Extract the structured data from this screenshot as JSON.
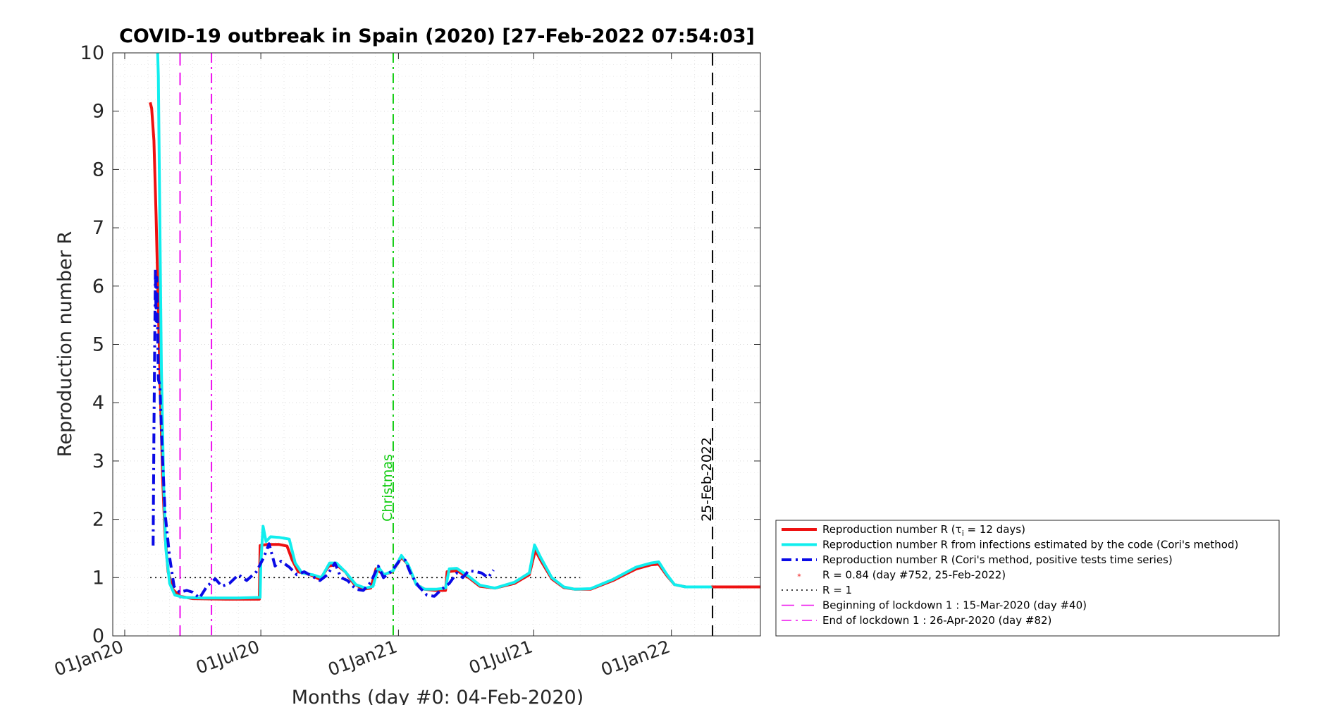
{
  "chart_data": {
    "type": "line",
    "title": "COVID-19 outbreak in Spain (2020) [27-Feb-2022 07:54:03]",
    "xlabel": "Months (day #0: 04-Feb-2020)",
    "ylabel": "Reproduction number R",
    "xlim": [
      "2019-12-16",
      "2022-04-30"
    ],
    "ylim": [
      0,
      10
    ],
    "yticks": [
      0,
      1,
      2,
      3,
      4,
      5,
      6,
      7,
      8,
      9,
      10
    ],
    "xticks": [
      {
        "date": "2020-01-01",
        "label": "01Jan20"
      },
      {
        "date": "2020-07-01",
        "label": "01Jul20"
      },
      {
        "date": "2021-01-01",
        "label": "01Jan21"
      },
      {
        "date": "2021-07-01",
        "label": "01Jul21"
      },
      {
        "date": "2022-01-01",
        "label": "01Jan22"
      }
    ],
    "grid": true,
    "legend_position": "right",
    "series": [
      {
        "name": "Reproduction number R (τi = 12 days)",
        "color": "#ee1111",
        "style": "solid",
        "points": [
          [
            "2020-02-04",
            9.15
          ],
          [
            "2020-02-06",
            9.05
          ],
          [
            "2020-02-09",
            8.5
          ],
          [
            "2020-02-12",
            7.2
          ],
          [
            "2020-02-15",
            5.6
          ],
          [
            "2020-02-18",
            4.0
          ],
          [
            "2020-02-21",
            2.6
          ],
          [
            "2020-02-24",
            1.7
          ],
          [
            "2020-02-28",
            1.1
          ],
          [
            "2020-03-05",
            0.8
          ],
          [
            "2020-03-15",
            0.68
          ],
          [
            "2020-04-01",
            0.64
          ],
          [
            "2020-05-15",
            0.63
          ],
          [
            "2020-06-29",
            0.63
          ],
          [
            "2020-06-30",
            1.55
          ],
          [
            "2020-07-10",
            1.57
          ],
          [
            "2020-07-25",
            1.57
          ],
          [
            "2020-08-05",
            1.54
          ],
          [
            "2020-08-12",
            1.3
          ],
          [
            "2020-08-20",
            1.1
          ],
          [
            "2020-09-05",
            1.05
          ],
          [
            "2020-09-18",
            0.97
          ],
          [
            "2020-09-30",
            1.2
          ],
          [
            "2020-10-10",
            1.22
          ],
          [
            "2020-10-22",
            1.1
          ],
          [
            "2020-11-02",
            0.9
          ],
          [
            "2020-11-15",
            0.8
          ],
          [
            "2020-11-25",
            0.82
          ],
          [
            "2020-12-02",
            1.15
          ],
          [
            "2020-12-12",
            1.05
          ],
          [
            "2020-12-24",
            1.1
          ],
          [
            "2021-01-05",
            1.35
          ],
          [
            "2021-01-12",
            1.25
          ],
          [
            "2021-01-25",
            0.88
          ],
          [
            "2021-02-05",
            0.8
          ],
          [
            "2021-02-20",
            0.78
          ],
          [
            "2021-03-05",
            0.78
          ],
          [
            "2021-03-07",
            1.1
          ],
          [
            "2021-03-20",
            1.12
          ],
          [
            "2021-04-05",
            1.0
          ],
          [
            "2021-04-20",
            0.85
          ],
          [
            "2021-05-10",
            0.82
          ],
          [
            "2021-06-05",
            0.9
          ],
          [
            "2021-06-25",
            1.05
          ],
          [
            "2021-07-03",
            1.47
          ],
          [
            "2021-07-10",
            1.3
          ],
          [
            "2021-07-25",
            0.98
          ],
          [
            "2021-08-10",
            0.83
          ],
          [
            "2021-08-25",
            0.8
          ],
          [
            "2021-09-15",
            0.8
          ],
          [
            "2021-10-15",
            0.95
          ],
          [
            "2021-11-15",
            1.15
          ],
          [
            "2021-12-05",
            1.22
          ],
          [
            "2021-12-15",
            1.23
          ],
          [
            "2021-12-25",
            1.05
          ],
          [
            "2022-01-05",
            0.88
          ],
          [
            "2022-01-20",
            0.84
          ],
          [
            "2022-02-25",
            0.84
          ],
          [
            "2022-04-30",
            0.84
          ]
        ]
      },
      {
        "name": "Reproduction number R from infections estimated by the code (Cori's method)",
        "color": "#11eeee",
        "style": "solid",
        "points": [
          [
            "2020-02-14",
            10.0
          ],
          [
            "2020-02-15",
            9.6
          ],
          [
            "2020-02-17",
            7.0
          ],
          [
            "2020-02-19",
            4.6
          ],
          [
            "2020-02-22",
            2.6
          ],
          [
            "2020-02-25",
            1.5
          ],
          [
            "2020-03-01",
            0.9
          ],
          [
            "2020-03-08",
            0.7
          ],
          [
            "2020-03-20",
            0.66
          ],
          [
            "2020-04-15",
            0.65
          ],
          [
            "2020-06-01",
            0.65
          ],
          [
            "2020-06-30",
            0.66
          ],
          [
            "2020-07-01",
            1.25
          ],
          [
            "2020-07-04",
            1.88
          ],
          [
            "2020-07-08",
            1.62
          ],
          [
            "2020-07-14",
            1.7
          ],
          [
            "2020-07-25",
            1.69
          ],
          [
            "2020-08-08",
            1.66
          ],
          [
            "2020-08-16",
            1.25
          ],
          [
            "2020-08-25",
            1.08
          ],
          [
            "2020-09-08",
            1.05
          ],
          [
            "2020-09-20",
            1.0
          ],
          [
            "2020-10-01",
            1.25
          ],
          [
            "2020-10-10",
            1.25
          ],
          [
            "2020-10-22",
            1.1
          ],
          [
            "2020-11-05",
            0.88
          ],
          [
            "2020-11-18",
            0.82
          ],
          [
            "2020-11-28",
            0.85
          ],
          [
            "2020-12-05",
            1.18
          ],
          [
            "2020-12-13",
            1.05
          ],
          [
            "2020-12-25",
            1.12
          ],
          [
            "2021-01-05",
            1.38
          ],
          [
            "2021-01-14",
            1.22
          ],
          [
            "2021-01-25",
            0.88
          ],
          [
            "2021-02-05",
            0.8
          ],
          [
            "2021-02-20",
            0.8
          ],
          [
            "2021-03-05",
            0.82
          ],
          [
            "2021-03-10",
            1.15
          ],
          [
            "2021-03-20",
            1.16
          ],
          [
            "2021-04-05",
            1.02
          ],
          [
            "2021-04-20",
            0.87
          ],
          [
            "2021-05-10",
            0.82
          ],
          [
            "2021-06-05",
            0.92
          ],
          [
            "2021-06-25",
            1.08
          ],
          [
            "2021-07-02",
            1.56
          ],
          [
            "2021-07-10",
            1.35
          ],
          [
            "2021-07-25",
            1.0
          ],
          [
            "2021-08-10",
            0.84
          ],
          [
            "2021-08-25",
            0.8
          ],
          [
            "2021-09-15",
            0.81
          ],
          [
            "2021-10-15",
            0.97
          ],
          [
            "2021-11-15",
            1.18
          ],
          [
            "2021-12-05",
            1.25
          ],
          [
            "2021-12-15",
            1.27
          ],
          [
            "2021-12-25",
            1.07
          ],
          [
            "2022-01-05",
            0.88
          ],
          [
            "2022-01-20",
            0.84
          ],
          [
            "2022-02-25",
            0.84
          ]
        ]
      },
      {
        "name": "Reproduction number R (Cori's method, positive tests time series)",
        "color": "#0a0ae6",
        "style": "dashdot",
        "points": [
          [
            "2020-02-08",
            1.55
          ],
          [
            "2020-02-09",
            3.5
          ],
          [
            "2020-02-11",
            6.3
          ],
          [
            "2020-02-12",
            5.4
          ],
          [
            "2020-02-13",
            6.15
          ],
          [
            "2020-02-15",
            4.4
          ],
          [
            "2020-02-17",
            4.3
          ],
          [
            "2020-02-20",
            3.2
          ],
          [
            "2020-02-24",
            2.1
          ],
          [
            "2020-03-01",
            1.35
          ],
          [
            "2020-03-07",
            0.85
          ],
          [
            "2020-03-14",
            0.75
          ],
          [
            "2020-03-24",
            0.78
          ],
          [
            "2020-04-01",
            0.75
          ],
          [
            "2020-04-10",
            0.65
          ],
          [
            "2020-04-20",
            0.85
          ],
          [
            "2020-05-01",
            0.98
          ],
          [
            "2020-05-10",
            0.85
          ],
          [
            "2020-05-20",
            0.9
          ],
          [
            "2020-06-01",
            1.05
          ],
          [
            "2020-06-12",
            0.95
          ],
          [
            "2020-06-25",
            1.1
          ],
          [
            "2020-07-05",
            1.35
          ],
          [
            "2020-07-12",
            1.58
          ],
          [
            "2020-07-20",
            1.2
          ],
          [
            "2020-07-28",
            1.28
          ],
          [
            "2020-08-08",
            1.18
          ],
          [
            "2020-08-18",
            1.05
          ],
          [
            "2020-08-28",
            1.1
          ],
          [
            "2020-09-08",
            1.02
          ],
          [
            "2020-09-18",
            0.95
          ],
          [
            "2020-09-28",
            1.05
          ],
          [
            "2020-10-08",
            1.25
          ],
          [
            "2020-10-16",
            1.0
          ],
          [
            "2020-10-25",
            0.95
          ],
          [
            "2020-11-05",
            0.8
          ],
          [
            "2020-11-15",
            0.78
          ],
          [
            "2020-11-25",
            0.92
          ],
          [
            "2020-12-05",
            1.2
          ],
          [
            "2020-12-12",
            1.0
          ],
          [
            "2020-12-22",
            1.1
          ],
          [
            "2021-01-02",
            1.28
          ],
          [
            "2021-01-10",
            1.3
          ],
          [
            "2021-01-18",
            1.05
          ],
          [
            "2021-01-28",
            0.85
          ],
          [
            "2021-02-08",
            0.7
          ],
          [
            "2021-02-18",
            0.68
          ],
          [
            "2021-02-28",
            0.8
          ],
          [
            "2021-03-10",
            0.9
          ],
          [
            "2021-03-20",
            1.08
          ],
          [
            "2021-03-28",
            1.0
          ],
          [
            "2021-04-05",
            1.12
          ],
          [
            "2021-04-15",
            1.1
          ],
          [
            "2021-04-22",
            1.08
          ],
          [
            "2021-05-01",
            1.0
          ],
          [
            "2021-05-08",
            1.13
          ]
        ]
      }
    ],
    "markers": [
      {
        "label": "R = 0.84 (day #752, 25-Feb-2022)",
        "date": "2022-02-25",
        "value": 0.84,
        "color": "#ee1111"
      }
    ],
    "reference_lines": [
      {
        "type": "horizontal",
        "value": 1,
        "label": "R = 1",
        "color": "#000000",
        "style": "dotted"
      },
      {
        "type": "vertical",
        "date": "2020-03-15",
        "label": "Beginning of lockdown 1 : 15-Mar-2020 (day #40)",
        "color": "#ee11ee",
        "style": "dashed"
      },
      {
        "type": "vertical",
        "date": "2020-04-26",
        "label": "End of lockdown 1 : 26-Apr-2020 (day #82)",
        "color": "#ee11ee",
        "style": "dashdot"
      },
      {
        "type": "vertical",
        "date": "2020-12-25",
        "text": "Christmas",
        "color": "#11cc11",
        "style": "dashdot"
      },
      {
        "type": "vertical",
        "date": "2022-02-25",
        "text": "25-Feb-2022",
        "color": "#000000",
        "style": "dashed"
      }
    ],
    "legend": [
      {
        "text": "Reproduction number R (τ",
        "sub": "i",
        "after": " = 12 days)",
        "color": "#ee1111",
        "style": "solid",
        "width": 4
      },
      {
        "text": "Reproduction number R from infections estimated by the code (Cori's method)",
        "color": "#11eeee",
        "style": "solid",
        "width": 4
      },
      {
        "text": "Reproduction number R (Cori's method, positive tests time series)",
        "color": "#0a0ae6",
        "style": "dashdot",
        "width": 4
      },
      {
        "text": "R = 0.84 (day #752, 25-Feb-2022)",
        "color": "#ee1111",
        "style": "marker",
        "width": 1
      },
      {
        "text": "R = 1",
        "color": "#000000",
        "style": "dotted",
        "width": 1.5
      },
      {
        "text": "Beginning of lockdown 1 : 15-Mar-2020 (day #40)",
        "color": "#ee11ee",
        "style": "dashed",
        "width": 1.5
      },
      {
        "text": "End of lockdown 1 : 26-Apr-2020 (day #82)",
        "color": "#ee11ee",
        "style": "dashdot",
        "width": 1.5
      }
    ]
  }
}
